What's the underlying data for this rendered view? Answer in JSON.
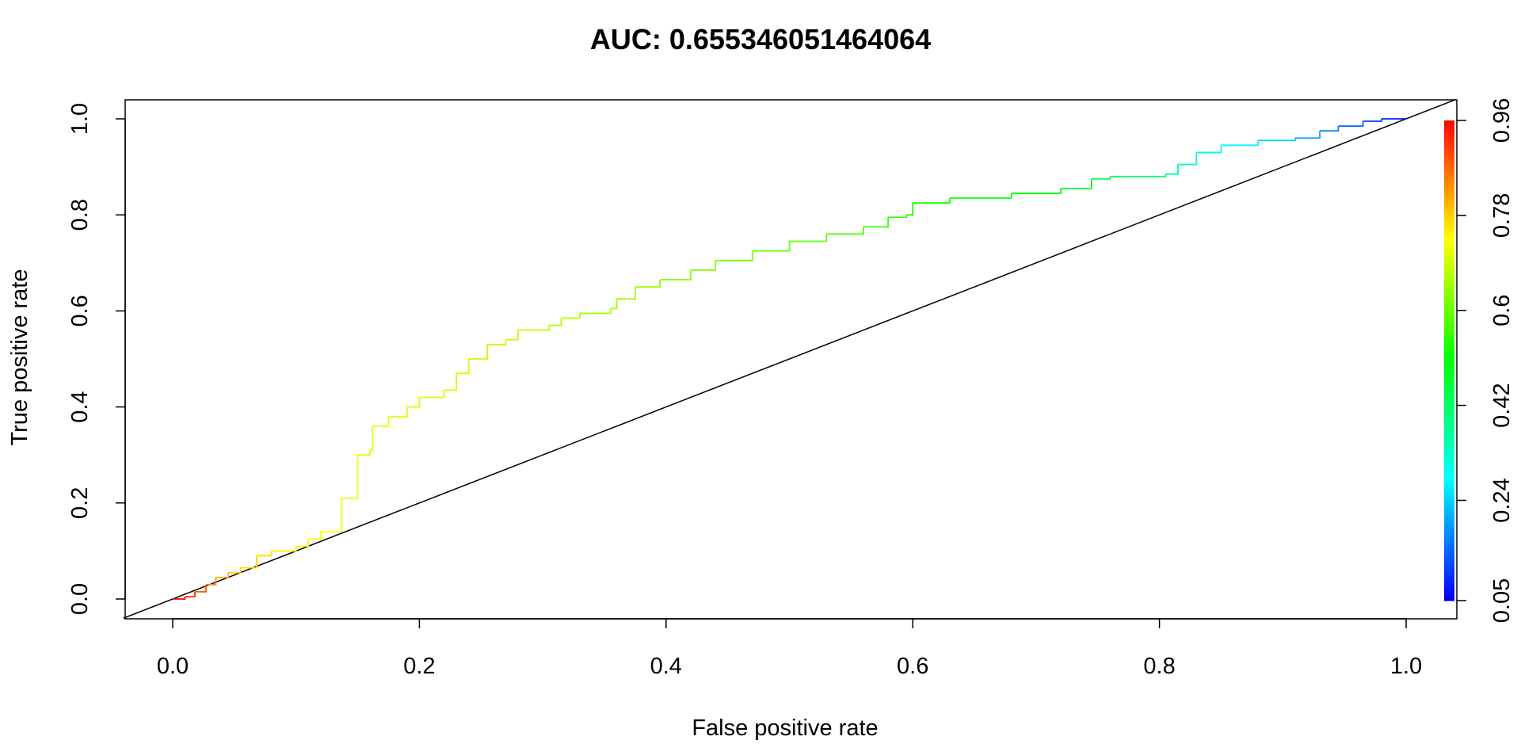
{
  "chart_data": {
    "type": "line",
    "title": "AUC: 0.655346051464064",
    "xlabel": "False positive rate",
    "ylabel": "True positive rate",
    "xlim": [
      0,
      1
    ],
    "ylim": [
      0,
      1
    ],
    "x_ticks": [
      "0.0",
      "0.2",
      "0.4",
      "0.6",
      "0.8",
      "1.0"
    ],
    "y_ticks": [
      "0.0",
      "0.2",
      "0.4",
      "0.6",
      "0.8",
      "1.0"
    ],
    "grid": false,
    "legend": "none",
    "colorbar": {
      "label_position": "right",
      "ticks": [
        "0.05",
        "0.24",
        "0.42",
        "0.6",
        "0.78",
        "0.96"
      ],
      "low_color": "#0000ff",
      "high_color": "#ff0000"
    },
    "diagonal_reference": {
      "from": [
        0,
        0
      ],
      "to": [
        1,
        1
      ],
      "color": "#000000"
    },
    "series": [
      {
        "colored_by": "cutoff",
        "points": [
          [
            0.0,
            0.0,
            0.96
          ],
          [
            0.01,
            0.005,
            0.92
          ],
          [
            0.018,
            0.015,
            0.88
          ],
          [
            0.027,
            0.03,
            0.84
          ],
          [
            0.035,
            0.045,
            0.8
          ],
          [
            0.045,
            0.055,
            0.78
          ],
          [
            0.055,
            0.065,
            0.77
          ],
          [
            0.068,
            0.09,
            0.76
          ],
          [
            0.08,
            0.1,
            0.75
          ],
          [
            0.1,
            0.11,
            0.74
          ],
          [
            0.11,
            0.125,
            0.73
          ],
          [
            0.12,
            0.14,
            0.73
          ],
          [
            0.137,
            0.14,
            0.72
          ],
          [
            0.137,
            0.21,
            0.72
          ],
          [
            0.15,
            0.24,
            0.72
          ],
          [
            0.15,
            0.3,
            0.71
          ],
          [
            0.16,
            0.31,
            0.71
          ],
          [
            0.162,
            0.36,
            0.71
          ],
          [
            0.175,
            0.38,
            0.7
          ],
          [
            0.19,
            0.4,
            0.7
          ],
          [
            0.2,
            0.42,
            0.7
          ],
          [
            0.22,
            0.435,
            0.69
          ],
          [
            0.23,
            0.47,
            0.69
          ],
          [
            0.24,
            0.5,
            0.68
          ],
          [
            0.255,
            0.53,
            0.68
          ],
          [
            0.27,
            0.54,
            0.67
          ],
          [
            0.28,
            0.56,
            0.67
          ],
          [
            0.305,
            0.57,
            0.66
          ],
          [
            0.315,
            0.585,
            0.66
          ],
          [
            0.33,
            0.595,
            0.65
          ],
          [
            0.355,
            0.605,
            0.65
          ],
          [
            0.36,
            0.625,
            0.64
          ],
          [
            0.375,
            0.65,
            0.64
          ],
          [
            0.395,
            0.665,
            0.63
          ],
          [
            0.42,
            0.685,
            0.62
          ],
          [
            0.44,
            0.705,
            0.61
          ],
          [
            0.47,
            0.725,
            0.6
          ],
          [
            0.5,
            0.745,
            0.59
          ],
          [
            0.53,
            0.76,
            0.58
          ],
          [
            0.56,
            0.775,
            0.56
          ],
          [
            0.58,
            0.795,
            0.55
          ],
          [
            0.595,
            0.8,
            0.54
          ],
          [
            0.6,
            0.825,
            0.53
          ],
          [
            0.63,
            0.835,
            0.52
          ],
          [
            0.68,
            0.845,
            0.5
          ],
          [
            0.72,
            0.855,
            0.48
          ],
          [
            0.745,
            0.875,
            0.45
          ],
          [
            0.76,
            0.88,
            0.42
          ],
          [
            0.805,
            0.885,
            0.36
          ],
          [
            0.815,
            0.905,
            0.33
          ],
          [
            0.83,
            0.93,
            0.3
          ],
          [
            0.85,
            0.945,
            0.27
          ],
          [
            0.88,
            0.955,
            0.24
          ],
          [
            0.91,
            0.96,
            0.2
          ],
          [
            0.93,
            0.975,
            0.17
          ],
          [
            0.945,
            0.985,
            0.14
          ],
          [
            0.965,
            0.995,
            0.11
          ],
          [
            0.98,
            1.0,
            0.08
          ],
          [
            1.0,
            1.0,
            0.05
          ]
        ]
      }
    ]
  }
}
